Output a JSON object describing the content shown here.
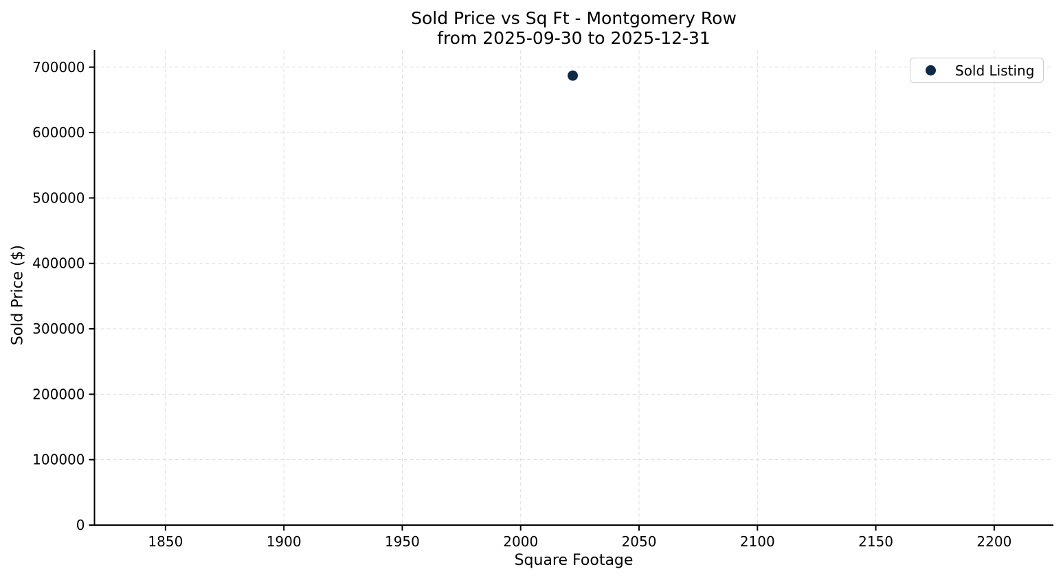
{
  "title": {
    "line1": "Sold Price vs Sq Ft - Montgomery Row",
    "line2": "from 2025-09-30 to 2025-12-31"
  },
  "chart_data": {
    "type": "scatter",
    "title": "Sold Price vs Sq Ft - Montgomery Row\nfrom 2025-09-30 to 2025-12-31",
    "xlabel": "Square Footage",
    "ylabel": "Sold Price ($)",
    "series": [
      {
        "name": "Sold Listing",
        "points": [
          {
            "x": 2022,
            "y": 687000
          }
        ],
        "marker_color": "#0e2a47",
        "marker": "circle"
      }
    ],
    "xlim": [
      1820,
      2225
    ],
    "ylim": [
      0,
      726000
    ],
    "x_ticks": [
      1850,
      1900,
      1950,
      2000,
      2050,
      2100,
      2150,
      2200
    ],
    "y_ticks": [
      0,
      100000,
      200000,
      300000,
      400000,
      500000,
      600000,
      700000
    ],
    "grid": true,
    "grid_style": "dashed",
    "legend": {
      "position": "upper right",
      "entries": [
        "Sold Listing"
      ]
    }
  },
  "colors": {
    "marker": "#0e2a47",
    "grid": "#dcdcdc",
    "spine": "#000000",
    "text": "#000000",
    "legend_border": "#cccccc",
    "background": "#ffffff"
  }
}
